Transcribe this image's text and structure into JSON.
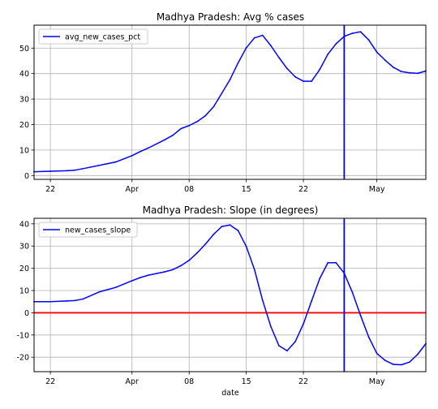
{
  "chart_data": [
    {
      "type": "line",
      "title": "Madhya Pradesh: Avg % cases",
      "xlabel": "",
      "ylabel": "",
      "x": [
        "2020-03-20",
        "2020-03-22",
        "2020-03-24",
        "2020-03-25",
        "2020-03-26",
        "2020-03-28",
        "2020-03-30",
        "2020-04-01",
        "2020-04-02",
        "2020-04-03",
        "2020-04-05",
        "2020-04-06",
        "2020-04-07",
        "2020-04-08",
        "2020-04-09",
        "2020-04-10",
        "2020-04-11",
        "2020-04-12",
        "2020-04-13",
        "2020-04-14",
        "2020-04-15",
        "2020-04-16",
        "2020-04-17",
        "2020-04-18",
        "2020-04-19",
        "2020-04-20",
        "2020-04-21",
        "2020-04-22",
        "2020-04-23",
        "2020-04-24",
        "2020-04-25",
        "2020-04-26",
        "2020-04-27",
        "2020-04-28",
        "2020-04-29",
        "2020-04-30",
        "2020-05-01",
        "2020-05-02",
        "2020-05-03",
        "2020-05-04",
        "2020-05-05",
        "2020-05-06",
        "2020-05-07"
      ],
      "series": [
        {
          "name": "avg_new_cases_pct",
          "color": "#0000ff",
          "values": [
            1.5,
            1.7,
            1.9,
            2.1,
            2.7,
            4.0,
            5.3,
            7.8,
            9.4,
            10.8,
            14.0,
            15.8,
            18.4,
            19.6,
            21.2,
            23.5,
            27.0,
            32.3,
            37.6,
            44.2,
            50.1,
            54.0,
            55.0,
            51.0,
            46.3,
            42.0,
            38.7,
            37.0,
            37.0,
            41.6,
            47.6,
            51.7,
            54.6,
            55.8,
            56.4,
            53.2,
            48.4,
            45.3,
            42.5,
            40.8,
            40.3,
            40.1,
            41.0
          ]
        }
      ],
      "xticks": [
        {
          "value": "2020-03-22",
          "label": "22"
        },
        {
          "value": "2020-04-01",
          "label": "Apr"
        },
        {
          "value": "2020-04-08",
          "label": "08"
        },
        {
          "value": "2020-04-15",
          "label": "15"
        },
        {
          "value": "2020-04-22",
          "label": "22"
        },
        {
          "value": "2020-05-01",
          "label": "May"
        }
      ],
      "yticks": [
        0,
        10,
        20,
        30,
        40,
        50
      ],
      "xlim": [
        "2020-03-20",
        "2020-05-07"
      ],
      "ylim": [
        -1.5,
        59
      ],
      "vline": {
        "x": "2020-04-27",
        "color": "#0000ff"
      },
      "grid": true,
      "legend": "upper-left"
    },
    {
      "type": "line",
      "title": "Madhya Pradesh: Slope (in degrees)",
      "xlabel": "date",
      "ylabel": "",
      "x": [
        "2020-03-20",
        "2020-03-22",
        "2020-03-24",
        "2020-03-25",
        "2020-03-26",
        "2020-03-28",
        "2020-03-30",
        "2020-04-01",
        "2020-04-02",
        "2020-04-03",
        "2020-04-05",
        "2020-04-06",
        "2020-04-07",
        "2020-04-08",
        "2020-04-09",
        "2020-04-10",
        "2020-04-11",
        "2020-04-12",
        "2020-04-13",
        "2020-04-14",
        "2020-04-15",
        "2020-04-16",
        "2020-04-17",
        "2020-04-18",
        "2020-04-19",
        "2020-04-20",
        "2020-04-21",
        "2020-04-22",
        "2020-04-23",
        "2020-04-24",
        "2020-04-25",
        "2020-04-26",
        "2020-04-27",
        "2020-04-28",
        "2020-04-29",
        "2020-04-30",
        "2020-05-01",
        "2020-05-02",
        "2020-05-03",
        "2020-05-04",
        "2020-05-05",
        "2020-05-06",
        "2020-05-07"
      ],
      "series": [
        {
          "name": "new_cases_slope",
          "color": "#0000ff",
          "values": [
            5.0,
            5.0,
            5.3,
            5.5,
            6.2,
            9.4,
            11.4,
            14.4,
            15.8,
            16.9,
            18.4,
            19.4,
            21.2,
            23.6,
            27.0,
            30.9,
            35.3,
            38.8,
            39.5,
            37.0,
            29.8,
            19.5,
            5.6,
            -6.1,
            -14.8,
            -17.1,
            -13.0,
            -5.0,
            5.3,
            15.4,
            22.5,
            22.5,
            17.8,
            9.2,
            -1.2,
            -10.9,
            -18.3,
            -21.4,
            -23.2,
            -23.4,
            -22.2,
            -18.7,
            -13.9
          ]
        }
      ],
      "xticks": [
        {
          "value": "2020-03-22",
          "label": "22"
        },
        {
          "value": "2020-04-01",
          "label": "Apr"
        },
        {
          "value": "2020-04-08",
          "label": "08"
        },
        {
          "value": "2020-04-15",
          "label": "15"
        },
        {
          "value": "2020-04-22",
          "label": "22"
        },
        {
          "value": "2020-05-01",
          "label": "May"
        }
      ],
      "yticks": [
        -20,
        -10,
        0,
        10,
        20,
        30,
        40
      ],
      "xlim": [
        "2020-03-20",
        "2020-05-07"
      ],
      "ylim": [
        -26.5,
        42.5
      ],
      "vline": {
        "x": "2020-04-27",
        "color": "#0000ff"
      },
      "hline": {
        "y": 0,
        "color": "#ff0000"
      },
      "grid": true,
      "legend": "upper-left"
    }
  ]
}
